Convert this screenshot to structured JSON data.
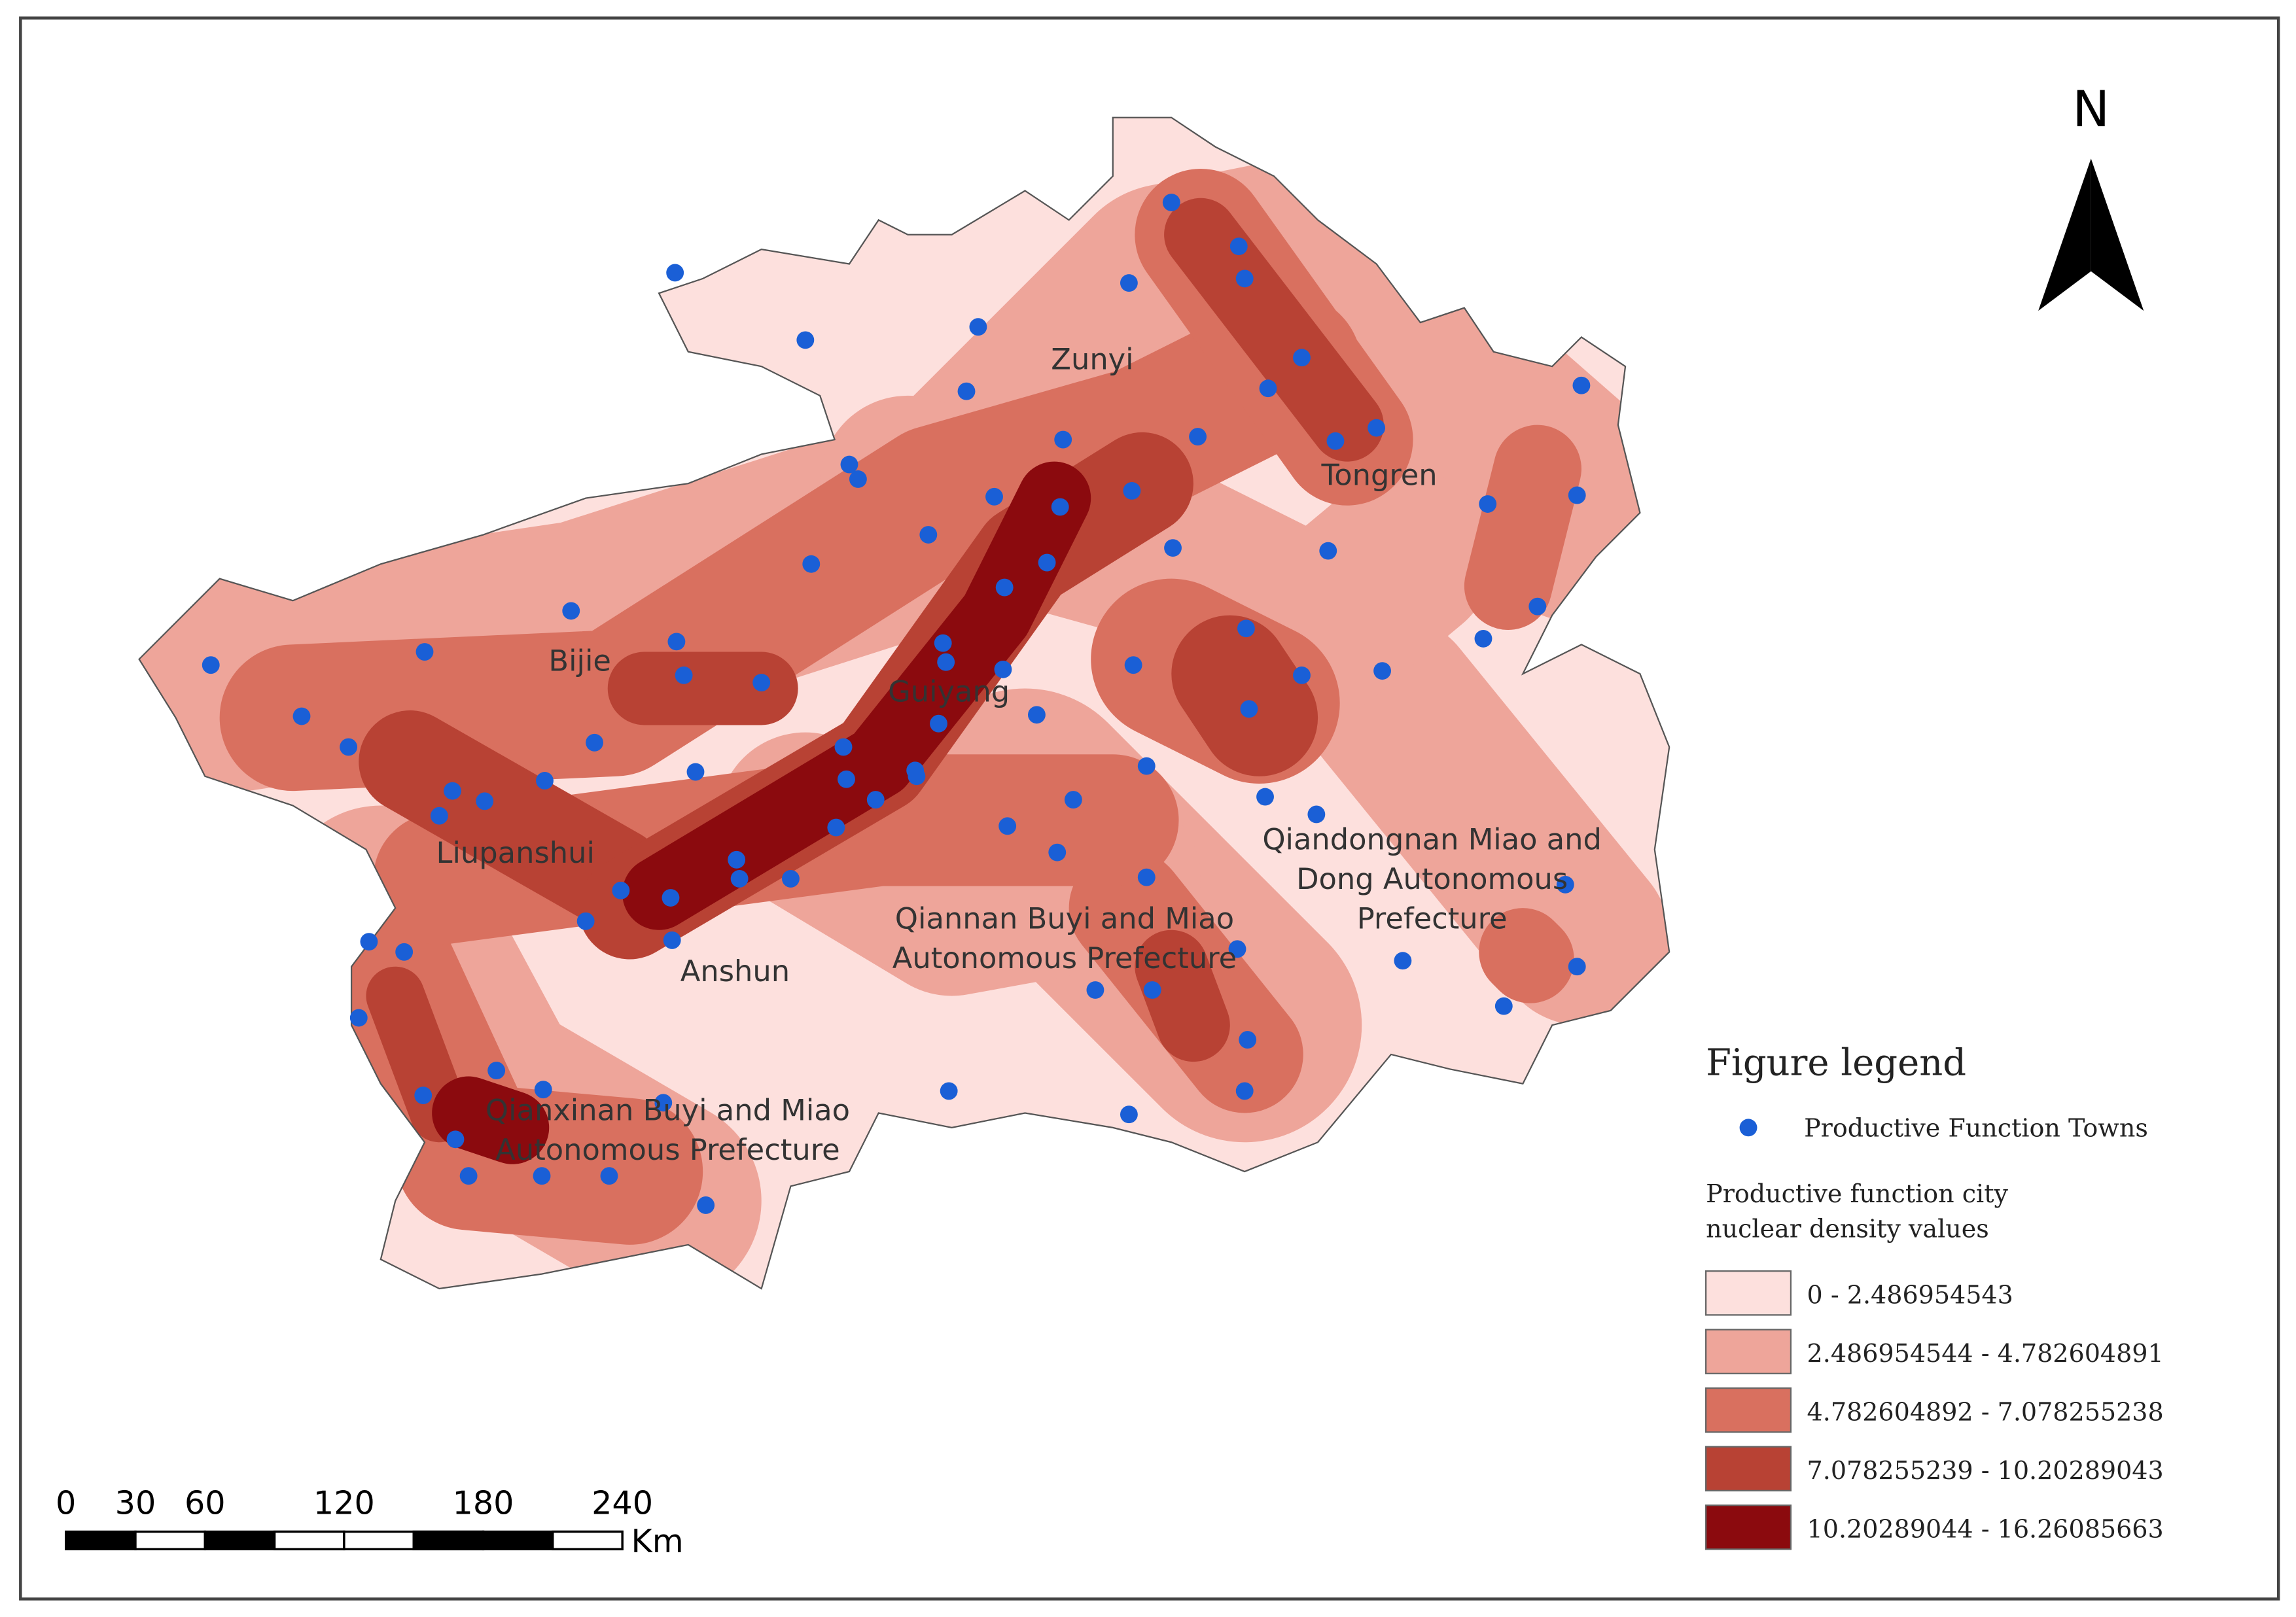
{
  "north": "N",
  "regions": [
    {
      "lines": [
        "Zunyi"
      ]
    },
    {
      "lines": [
        "Tongren"
      ]
    },
    {
      "lines": [
        "Bijie"
      ]
    },
    {
      "lines": [
        "Guiyang"
      ]
    },
    {
      "lines": [
        "Liupanshui"
      ]
    },
    {
      "lines": [
        "Anshun"
      ]
    },
    {
      "lines": [
        "Qiandongnan Miao and",
        "Dong Autonomous",
        "Prefecture"
      ]
    },
    {
      "lines": [
        "Qiannan Buyi and Miao",
        "Autonomous Prefecture"
      ]
    },
    {
      "lines": [
        "Qianxinan Buyi and Miao",
        "Autonomous Prefecture"
      ]
    }
  ],
  "legend": {
    "title": "Figure legend",
    "point_label": "Productive Function Towns",
    "density_title": [
      "Productive function city",
      "nuclear density values"
    ],
    "classes": [
      {
        "label": "0 - 2.486954543",
        "color": "#fde0dd"
      },
      {
        "label": "2.486954544 - 4.782604891",
        "color": "#eea59a"
      },
      {
        "label": "4.782604892 - 7.078255238",
        "color": "#d9705f"
      },
      {
        "label": "7.078255239 - 10.20289043",
        "color": "#b84234"
      },
      {
        "label": "10.20289044 - 16.26085663",
        "color": "#8b0a0e"
      }
    ]
  },
  "scale_bar": {
    "ticks": [
      0,
      30,
      60,
      120,
      180,
      240
    ],
    "unit": "Km"
  }
}
